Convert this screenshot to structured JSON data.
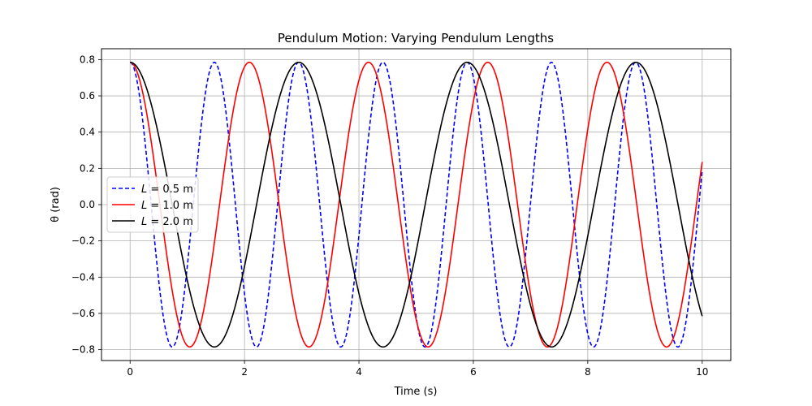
{
  "chart_data": {
    "type": "line",
    "title": "Pendulum Motion: Varying Pendulum Lengths",
    "xlabel": "Time (s)",
    "ylabel": "θ (rad)",
    "xlim": [
      -0.5,
      10.5
    ],
    "ylim": [
      -0.86,
      0.86
    ],
    "xticks": [
      0,
      2,
      4,
      6,
      8,
      10
    ],
    "xtick_labels": [
      "0",
      "2",
      "4",
      "6",
      "8",
      "10"
    ],
    "yticks": [
      -0.8,
      -0.6,
      -0.4,
      -0.2,
      0.0,
      0.2,
      0.4,
      0.6,
      0.8
    ],
    "ytick_labels": [
      "−0.8",
      "−0.6",
      "−0.4",
      "−0.2",
      "0.0",
      "0.2",
      "0.4",
      "0.6",
      "0.8"
    ],
    "grid": true,
    "legend_position": "center-left",
    "series": [
      {
        "name": "L = 0.5 m",
        "legend_math": "L",
        "legend_rest": " = 0.5 m",
        "color": "#0000ff",
        "linestyle": "dashed",
        "theta0": 0.785,
        "period": 1.473,
        "t_start": 0,
        "t_end": 10
      },
      {
        "name": "L = 1.0 m",
        "legend_math": "L",
        "legend_rest": " = 1.0 m",
        "color": "#ff0000",
        "linestyle": "solid",
        "theta0": 0.785,
        "period": 2.084,
        "t_start": 0,
        "t_end": 10
      },
      {
        "name": "L = 2.0 m",
        "legend_math": "L",
        "legend_rest": " = 2.0 m",
        "color": "#000000",
        "linestyle": "solid",
        "theta0": 0.785,
        "period": 2.947,
        "t_start": 0,
        "t_end": 10
      }
    ]
  }
}
